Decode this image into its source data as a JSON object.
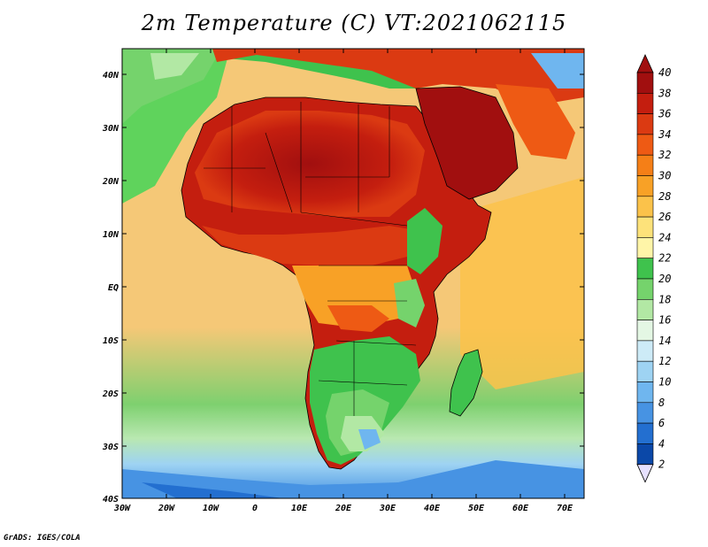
{
  "title": "2m Temperature (C) VT:2021062115",
  "credit": "GrADS: IGES/COLA",
  "map": {
    "lon_ticks": [
      "30W",
      "20W",
      "10W",
      "0",
      "10E",
      "20E",
      "30E",
      "40E",
      "50E",
      "60E",
      "70E"
    ],
    "lat_ticks": [
      "40N",
      "30N",
      "20N",
      "10N",
      "EQ",
      "10S",
      "20S",
      "30S",
      "40S"
    ],
    "ocean_color": "#f5c877",
    "cold_ocean_color": "#5fd35c"
  },
  "colorbar": {
    "levels": [
      "40",
      "38",
      "36",
      "34",
      "32",
      "30",
      "28",
      "26",
      "24",
      "22",
      "20",
      "18",
      "16",
      "14",
      "12",
      "10",
      "8",
      "6",
      "4",
      "2"
    ],
    "colors": [
      "#a10f0f",
      "#c41e0f",
      "#db3a12",
      "#ee5a14",
      "#f57f17",
      "#f8a126",
      "#fbc24a",
      "#fde27a",
      "#fff5a8",
      "#3fc24d",
      "#75d36c",
      "#b2e8a4",
      "#e4f7e4",
      "#cdebf7",
      "#9ed3f3",
      "#6fb6ef",
      "#4793e3",
      "#236fd0",
      "#0b48a8",
      "#071c6b"
    ],
    "top_color": "#a10f0f",
    "bottom_color": "#e6e0ff"
  }
}
